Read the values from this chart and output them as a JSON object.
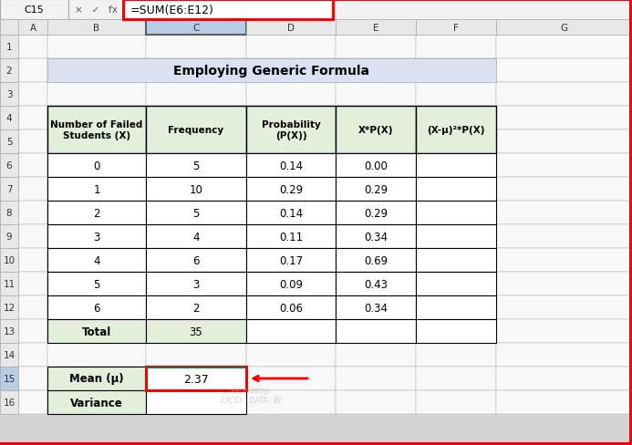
{
  "title": "Employing Generic Formula",
  "formula_bar_text": "=SUM(E6:E12)",
  "cell_ref": "C15",
  "table_headers": [
    "Number of Failed\nStudents (X)",
    "Frequency",
    "Probability\n(P(X))",
    "X*P(X)",
    "(X-μ)²*P(X)"
  ],
  "data_rows": [
    [
      "0",
      "5",
      "0.14",
      "0.00",
      ""
    ],
    [
      "1",
      "10",
      "0.29",
      "0.29",
      ""
    ],
    [
      "2",
      "5",
      "0.14",
      "0.29",
      ""
    ],
    [
      "3",
      "4",
      "0.11",
      "0.34",
      ""
    ],
    [
      "4",
      "6",
      "0.17",
      "0.69",
      ""
    ],
    [
      "5",
      "3",
      "0.09",
      "0.43",
      ""
    ],
    [
      "6",
      "2",
      "0.06",
      "0.34",
      ""
    ]
  ],
  "total_row": [
    "Total",
    "35"
  ],
  "mean_label": "Mean (μ)",
  "mean_value": "2.37",
  "variance_label": "Variance",
  "title_bg": "#d9e1f2",
  "table_header_bg": "#e2efda",
  "total_bg": "#e2efda",
  "mean_bg": "#e2efda",
  "variance_bg": "#e2efda",
  "col_header_bg": "#e8e8e8",
  "col_header_selected_bg": "#b8cce4",
  "row_header_bg": "#e8e8e8",
  "row_header_selected_bg": "#b8cce4",
  "formula_bar_bg": "#ffffff",
  "excel_bg": "#d4d4d4",
  "cell_white": "#ffffff",
  "red": "#ff0000",
  "black": "#000000",
  "gray_border": "#aaaaaa",
  "dark_border": "#444444"
}
